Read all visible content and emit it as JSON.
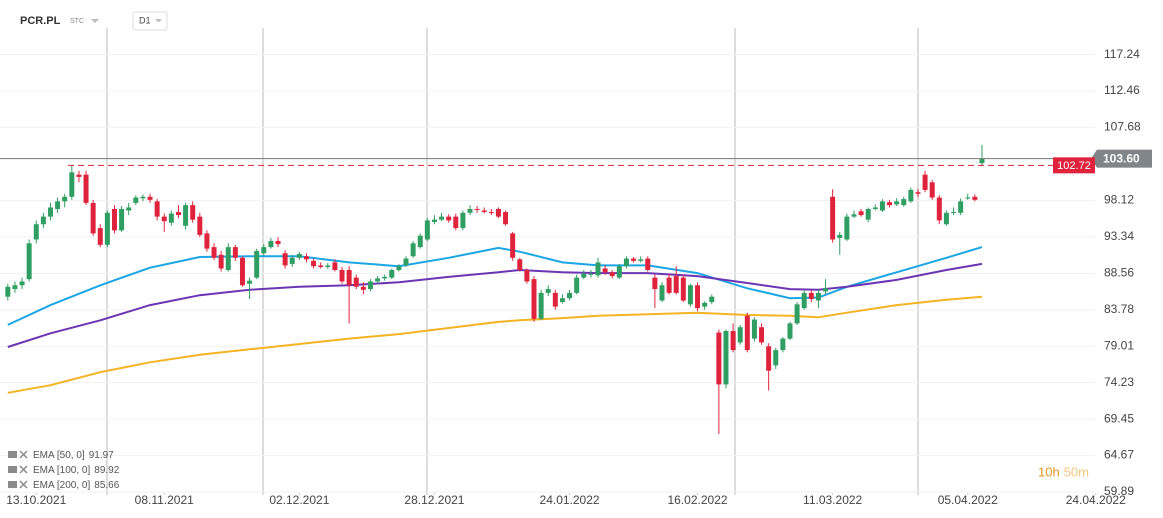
{
  "chart_data": {
    "type": "candlestick",
    "symbol": "PCR.PL",
    "market": "STC",
    "interval": "D1",
    "up_color": "#2f9e62",
    "down_color": "#e0233d",
    "ohlc": [
      [
        85.5,
        87.2,
        85,
        86.8
      ],
      [
        86.5,
        87.5,
        86,
        87
      ],
      [
        87,
        88,
        86.5,
        87.5
      ],
      [
        87.8,
        93,
        87.5,
        92.5
      ],
      [
        93,
        95.5,
        92.5,
        95
      ],
      [
        95,
        96.5,
        94.5,
        96
      ],
      [
        96,
        97.8,
        95.5,
        97.2
      ],
      [
        97,
        98.5,
        96.5,
        98
      ],
      [
        98,
        99,
        97.2,
        98.6
      ],
      [
        98.6,
        102.7,
        98.2,
        101.8
      ],
      [
        101.5,
        102,
        100.5,
        101.2
      ],
      [
        101.5,
        102,
        97.5,
        97.8
      ],
      [
        97.8,
        98.2,
        93.5,
        93.8
      ],
      [
        94.5,
        95,
        92,
        92.3
      ],
      [
        92.3,
        96.8,
        92,
        96.5
      ],
      [
        97,
        97.5,
        93.8,
        94.2
      ],
      [
        94.2,
        97.4,
        94,
        97
      ],
      [
        96.8,
        97.8,
        96.2,
        97.2
      ],
      [
        97.8,
        98.8,
        97.5,
        98.5
      ],
      [
        98.4,
        98.9,
        98,
        98.6
      ],
      [
        98.6,
        99,
        97.8,
        98.2
      ],
      [
        98,
        98.3,
        95.5,
        96
      ],
      [
        96,
        96.4,
        94,
        95.4
      ],
      [
        95.2,
        96.8,
        94.8,
        96.4
      ],
      [
        96.6,
        97.5,
        95.8,
        96.2
      ],
      [
        94.8,
        97.8,
        94.3,
        97.5
      ],
      [
        97.5,
        98,
        95.2,
        95.6
      ],
      [
        96,
        96.5,
        93.3,
        93.6
      ],
      [
        93.8,
        94.2,
        91.4,
        91.8
      ],
      [
        92,
        92.5,
        90.3,
        90.6
      ],
      [
        91,
        91.5,
        88.8,
        89.2
      ],
      [
        89,
        92.5,
        88.8,
        92
      ],
      [
        92,
        92.3,
        90.2,
        90.6
      ],
      [
        90.6,
        90.8,
        86.8,
        87
      ],
      [
        87.2,
        88,
        85.2,
        87.6
      ],
      [
        88,
        91.8,
        87.8,
        91.5
      ],
      [
        91.2,
        92.4,
        90.8,
        92
      ],
      [
        92,
        93.2,
        91.8,
        92.8
      ],
      [
        92.8,
        93.3,
        92,
        92.4
      ],
      [
        91.2,
        91.6,
        89.2,
        89.6
      ],
      [
        89.8,
        91,
        89.4,
        90.6
      ],
      [
        90.6,
        91.4,
        90.3,
        91.1
      ],
      [
        90.8,
        91.2,
        90,
        90.4
      ],
      [
        90.2,
        90.5,
        89.2,
        89.5
      ],
      [
        89.6,
        90,
        89.2,
        89.4
      ],
      [
        89.4,
        89.9,
        89.1,
        89.6
      ],
      [
        90,
        90.4,
        88.8,
        89
      ],
      [
        89,
        89.4,
        87.2,
        87.5
      ],
      [
        89,
        89.5,
        82,
        87
      ],
      [
        88,
        88.4,
        86.5,
        86.8
      ],
      [
        86.8,
        87.4,
        85.8,
        86.4
      ],
      [
        86.5,
        87.8,
        86.2,
        87.5
      ],
      [
        87.5,
        88.2,
        87.2,
        87.9
      ],
      [
        87.9,
        88.4,
        87.6,
        88.1
      ],
      [
        88,
        89.2,
        87.8,
        89
      ],
      [
        89,
        89.8,
        88.8,
        89.5
      ],
      [
        89.6,
        90.8,
        89.4,
        90.5
      ],
      [
        90.8,
        92.8,
        90.6,
        92.5
      ],
      [
        92,
        93.8,
        91.8,
        93.5
      ],
      [
        93,
        95.8,
        92.8,
        95.5
      ],
      [
        95.3,
        96.2,
        95,
        95.6
      ],
      [
        95.6,
        96.5,
        95.4,
        96
      ],
      [
        96,
        96.3,
        95.2,
        95.5
      ],
      [
        96,
        96.4,
        94.2,
        94.5
      ],
      [
        94.5,
        96.8,
        94.2,
        96.5
      ],
      [
        96.5,
        97.5,
        96.2,
        97
      ],
      [
        97,
        97.4,
        96.5,
        96.9
      ],
      [
        96.8,
        97.2,
        96.4,
        96.6
      ],
      [
        96.6,
        97,
        96.2,
        96.5
      ],
      [
        97,
        97.2,
        95.8,
        96
      ],
      [
        96.6,
        96.8,
        94.8,
        95
      ],
      [
        93.8,
        94,
        90.2,
        90.6
      ],
      [
        90.4,
        90.6,
        88.8,
        89
      ],
      [
        89,
        89.2,
        87.2,
        87.5
      ],
      [
        87.8,
        88.2,
        82.2,
        82.6
      ],
      [
        82.6,
        86.4,
        82.4,
        86
      ],
      [
        86,
        87,
        85.6,
        86.5
      ],
      [
        86,
        86.4,
        83.8,
        84.2
      ],
      [
        84.8,
        85.8,
        84.6,
        85.3
      ],
      [
        85.3,
        86.4,
        85,
        86
      ],
      [
        86,
        88.4,
        85.8,
        88
      ],
      [
        88,
        89,
        87.8,
        88.5
      ],
      [
        88.4,
        89,
        88,
        88.5
      ],
      [
        88.3,
        90.6,
        88,
        90
      ],
      [
        89.2,
        89.6,
        88.4,
        88.7
      ],
      [
        88.7,
        89,
        87.9,
        88.2
      ],
      [
        88,
        89.8,
        87.8,
        89.5
      ],
      [
        89.5,
        90.8,
        89.2,
        90.5
      ],
      [
        90.5,
        90.7,
        90,
        90.2
      ],
      [
        90.2,
        90.8,
        90,
        90.4
      ],
      [
        90.5,
        90.8,
        88.8,
        89
      ],
      [
        88,
        88.4,
        84,
        86.5
      ],
      [
        85,
        87.4,
        84.8,
        87
      ],
      [
        88,
        88.5,
        85.8,
        86
      ],
      [
        88.2,
        89.5,
        85.8,
        86
      ],
      [
        88,
        88.4,
        84.8,
        85
      ],
      [
        84.5,
        87.2,
        84.2,
        87
      ],
      [
        87,
        87.4,
        83.6,
        84
      ],
      [
        84.2,
        84.9,
        83.8,
        84.7
      ],
      [
        84.8,
        85.8,
        84.5,
        85.5
      ],
      [
        80.8,
        81.2,
        67.5,
        74
      ],
      [
        74,
        81.2,
        73.5,
        81
      ],
      [
        81,
        82,
        78.2,
        78.5
      ],
      [
        79.5,
        81.8,
        79.2,
        81.5
      ],
      [
        83,
        83.4,
        78.2,
        78.5
      ],
      [
        80,
        82.8,
        79.6,
        82.5
      ],
      [
        81.5,
        82,
        79.2,
        79.5
      ],
      [
        79,
        79.4,
        73.2,
        75.8
      ],
      [
        76.5,
        78.8,
        76,
        78.5
      ],
      [
        78.5,
        80.2,
        78.2,
        80
      ],
      [
        80,
        82.2,
        79.8,
        82
      ],
      [
        82,
        84.8,
        81.8,
        84.5
      ],
      [
        84,
        86.3,
        83.8,
        86
      ],
      [
        86,
        86.4,
        84.8,
        85.2
      ],
      [
        85,
        86.4,
        84,
        86
      ],
      [
        86.2,
        87.8,
        85.8,
        86.6
      ],
      [
        98.6,
        99.6,
        92.6,
        93
      ],
      [
        93.2,
        94,
        91,
        93.6
      ],
      [
        93,
        96.4,
        92.8,
        96
      ],
      [
        96,
        96.8,
        95.8,
        96.3
      ],
      [
        96.7,
        97,
        96,
        96.2
      ],
      [
        95.6,
        97.2,
        95.3,
        97
      ],
      [
        97,
        97.6,
        96.8,
        97.2
      ],
      [
        96.8,
        98.3,
        96.6,
        98
      ],
      [
        97.9,
        98.2,
        97.2,
        97.5
      ],
      [
        97.6,
        98.4,
        97.4,
        98
      ],
      [
        97.5,
        98.6,
        97.3,
        98.3
      ],
      [
        98,
        99.8,
        97.8,
        99.5
      ],
      [
        99.2,
        99.6,
        98.6,
        99
      ],
      [
        101.5,
        102,
        99.2,
        99.5
      ],
      [
        100.5,
        100.8,
        98.2,
        98.5
      ],
      [
        98.5,
        98.8,
        95,
        95.5
      ],
      [
        95,
        96.8,
        94.8,
        96.5
      ],
      [
        96.5,
        97.2,
        96.2,
        96.6
      ],
      [
        96.5,
        98.4,
        96.2,
        98
      ],
      [
        98.5,
        99,
        98.2,
        98.5
      ],
      [
        98.6,
        98.9,
        98,
        98.2
      ],
      [
        103,
        105.4,
        102.6,
        103.6
      ]
    ],
    "series": [
      {
        "name": "EMA [50, 0]",
        "last": 91.97,
        "color": "#1aa6e4",
        "x": [
          0,
          6,
          13,
          20,
          27,
          34,
          41,
          48,
          55,
          62,
          69,
          72,
          78,
          83,
          90,
          97,
          104,
          110,
          114,
          118,
          125,
          132,
          137
        ],
        "values": [
          81.8,
          84.4,
          87,
          89.3,
          90.7,
          90.8,
          90.8,
          90,
          89.5,
          90.6,
          91.9,
          91.4,
          90,
          89.6,
          89.6,
          88.6,
          86.6,
          85.3,
          85.4,
          86.8,
          88.7,
          90.6,
          92
        ]
      },
      {
        "name": "EMA [100, 0]",
        "last": 89.92,
        "color": "#6b35b3",
        "x": [
          0,
          6,
          13,
          20,
          27,
          34,
          41,
          48,
          55,
          62,
          69,
          72,
          78,
          83,
          90,
          97,
          104,
          110,
          114,
          118,
          125,
          132,
          137
        ],
        "values": [
          78.9,
          80.7,
          82.4,
          84.4,
          85.7,
          86.4,
          86.8,
          87,
          87.4,
          88.1,
          88.7,
          89,
          88.7,
          88.6,
          88.6,
          88.2,
          87.3,
          86.5,
          86.4,
          86.8,
          87.7,
          89,
          89.8
        ]
      },
      {
        "name": "EMA [200, 0]",
        "last": 85.66,
        "color": "#f3b323",
        "x": [
          0,
          6,
          13,
          20,
          27,
          34,
          41,
          48,
          55,
          62,
          69,
          72,
          78,
          83,
          90,
          97,
          104,
          110,
          114,
          118,
          125,
          132,
          137
        ],
        "values": [
          72.9,
          73.9,
          75.6,
          76.9,
          77.9,
          78.6,
          79.3,
          80,
          80.6,
          81.4,
          82.2,
          82.4,
          82.7,
          83,
          83.2,
          83.4,
          83.1,
          83,
          82.8,
          83.4,
          84.4,
          85.1,
          85.5
        ]
      }
    ],
    "xlim": [
      -1.1,
      153.6
    ],
    "xticks": [
      {
        "value": 4,
        "label": "13.10.2021"
      },
      {
        "value": 22,
        "label": "08.11.2021"
      },
      {
        "value": 41,
        "label": "02.12.2021"
      },
      {
        "value": 60,
        "label": "28.12.2021"
      },
      {
        "value": 79,
        "label": "24.01.2022"
      },
      {
        "value": 97,
        "label": "16.02.2022"
      },
      {
        "value": 116,
        "label": "11.03.2022"
      },
      {
        "value": 135,
        "label": "05.04.2022"
      },
      {
        "value": 153,
        "label": "24.04.2022"
      }
    ],
    "ylim": [
      59.5,
      124.4
    ],
    "yticks": [
      59.89,
      64.67,
      69.45,
      74.23,
      79.01,
      83.78,
      88.56,
      93.34,
      98.12,
      107.68,
      112.46,
      117.24
    ],
    "grid": true,
    "last_price": {
      "value": 103.6,
      "label": "103.60"
    },
    "alert_price": 102.72,
    "countdown_hours": "10h",
    "countdown_minutes": "50m"
  }
}
